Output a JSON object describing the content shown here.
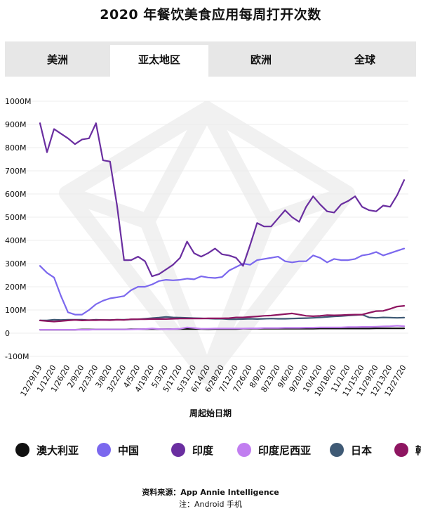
{
  "title": "2020 年餐饮美食应用每周打开次数",
  "tabs": [
    {
      "label": "美洲",
      "active": false
    },
    {
      "label": "亚太地区",
      "active": true
    },
    {
      "label": "欧洲",
      "active": false
    },
    {
      "label": "全球",
      "active": false
    }
  ],
  "footer": {
    "source": "资料来源：App Annie Intelligence",
    "note": "注：Android 手机"
  },
  "chart_data": {
    "type": "line",
    "title": "",
    "xlabel": "周起始日期",
    "ylabel": "",
    "ylim": [
      -100,
      1000
    ],
    "y_unit": "M",
    "yticks": [
      "1000M",
      "900M",
      "800M",
      "700M",
      "600M",
      "500M",
      "400M",
      "300M",
      "200M",
      "100M",
      "0",
      "-100M"
    ],
    "x_tick_labels": [
      "12/29/19",
      "1/12/20",
      "1/26/20",
      "2/9/20",
      "2/23/20",
      "3/8/20",
      "3/22/20",
      "4/5/20",
      "4/19/20",
      "5/3/20",
      "5/17/20",
      "5/31/20",
      "6/14/20",
      "6/28/20",
      "7/12/20",
      "7/26/20",
      "8/9/20",
      "8/23/20",
      "9/6/20",
      "9/20/20",
      "10/4/20",
      "10/18/20",
      "11/1/20",
      "11/15/20",
      "11/29/20",
      "12/13/20",
      "12/27/20"
    ],
    "x": [
      "12/29/19",
      "1/5/20",
      "1/12/20",
      "1/19/20",
      "1/26/20",
      "2/2/20",
      "2/9/20",
      "2/16/20",
      "2/23/20",
      "3/1/20",
      "3/8/20",
      "3/15/20",
      "3/22/20",
      "3/29/20",
      "4/5/20",
      "4/12/20",
      "4/19/20",
      "4/26/20",
      "5/3/20",
      "5/10/20",
      "5/17/20",
      "5/24/20",
      "5/31/20",
      "6/7/20",
      "6/14/20",
      "6/21/20",
      "6/28/20",
      "7/5/20",
      "7/12/20",
      "7/19/20",
      "7/26/20",
      "8/2/20",
      "8/9/20",
      "8/16/20",
      "8/23/20",
      "8/30/20",
      "9/6/20",
      "9/13/20",
      "9/20/20",
      "9/27/20",
      "10/4/20",
      "10/11/20",
      "10/18/20",
      "10/25/20",
      "11/1/20",
      "11/8/20",
      "11/15/20",
      "11/22/20",
      "11/29/20",
      "12/6/20",
      "12/13/20",
      "12/20/20",
      "12/27/20"
    ],
    "legend_position": "bottom",
    "grid": true,
    "series": [
      {
        "name": "澳大利亚",
        "color": "#111111",
        "values": [
          15,
          15,
          15,
          15,
          15,
          15,
          16,
          16,
          16,
          16,
          16,
          16,
          16,
          17,
          17,
          17,
          18,
          17,
          17,
          18,
          18,
          18,
          18,
          18,
          17,
          18,
          18,
          18,
          18,
          19,
          19,
          19,
          19,
          19,
          19,
          19,
          19,
          19,
          19,
          19,
          20,
          20,
          20,
          20,
          20,
          20,
          20,
          20,
          21,
          21,
          21,
          21,
          21
        ]
      },
      {
        "name": "中国",
        "color": "#7b68ee",
        "values": [
          290,
          260,
          240,
          160,
          90,
          80,
          80,
          100,
          125,
          140,
          150,
          155,
          160,
          185,
          200,
          200,
          210,
          225,
          230,
          228,
          230,
          235,
          232,
          245,
          240,
          238,
          242,
          270,
          285,
          300,
          295,
          315,
          320,
          325,
          330,
          310,
          305,
          310,
          310,
          335,
          325,
          305,
          320,
          315,
          315,
          320,
          335,
          340,
          350,
          335,
          345,
          355,
          365
        ]
      },
      {
        "name": "印度",
        "color": "#6a2ea0",
        "values": [
          905,
          780,
          880,
          860,
          840,
          815,
          835,
          840,
          905,
          745,
          740,
          550,
          315,
          315,
          330,
          310,
          245,
          255,
          275,
          295,
          325,
          395,
          345,
          330,
          345,
          365,
          340,
          335,
          325,
          290,
          380,
          475,
          460,
          460,
          495,
          530,
          500,
          480,
          545,
          590,
          555,
          525,
          520,
          555,
          570,
          590,
          545,
          530,
          525,
          550,
          545,
          595,
          660
        ]
      },
      {
        "name": "印度尼西亚",
        "color": "#c17ef0",
        "values": [
          15,
          15,
          15,
          15,
          15,
          15,
          15,
          15,
          16,
          16,
          16,
          16,
          16,
          16,
          17,
          18,
          20,
          18,
          17,
          18,
          19,
          25,
          22,
          19,
          19,
          20,
          20,
          20,
          20,
          20,
          21,
          21,
          22,
          22,
          22,
          23,
          23,
          23,
          24,
          24,
          25,
          25,
          25,
          25,
          26,
          26,
          27,
          27,
          28,
          29,
          30,
          32,
          30
        ]
      },
      {
        "name": "日本",
        "color": "#3f5a75",
        "values": [
          55,
          55,
          58,
          57,
          58,
          58,
          58,
          56,
          58,
          57,
          57,
          58,
          58,
          59,
          60,
          62,
          65,
          67,
          70,
          68,
          67,
          66,
          65,
          64,
          63,
          62,
          62,
          60,
          60,
          61,
          62,
          61,
          62,
          63,
          62,
          62,
          63,
          64,
          65,
          66,
          68,
          70,
          72,
          74,
          76,
          78,
          80,
          68,
          66,
          68,
          67,
          66,
          67
        ]
      },
      {
        "name": "韩国",
        "color": "#8e1561",
        "values": [
          55,
          52,
          50,
          52,
          55,
          57,
          55,
          56,
          56,
          57,
          56,
          58,
          57,
          60,
          60,
          60,
          61,
          61,
          61,
          62,
          63,
          63,
          63,
          63,
          64,
          64,
          64,
          65,
          68,
          68,
          70,
          72,
          75,
          76,
          79,
          82,
          85,
          80,
          75,
          73,
          75,
          78,
          77,
          78,
          79,
          80,
          80,
          88,
          95,
          96,
          105,
          115,
          118
        ]
      }
    ]
  }
}
